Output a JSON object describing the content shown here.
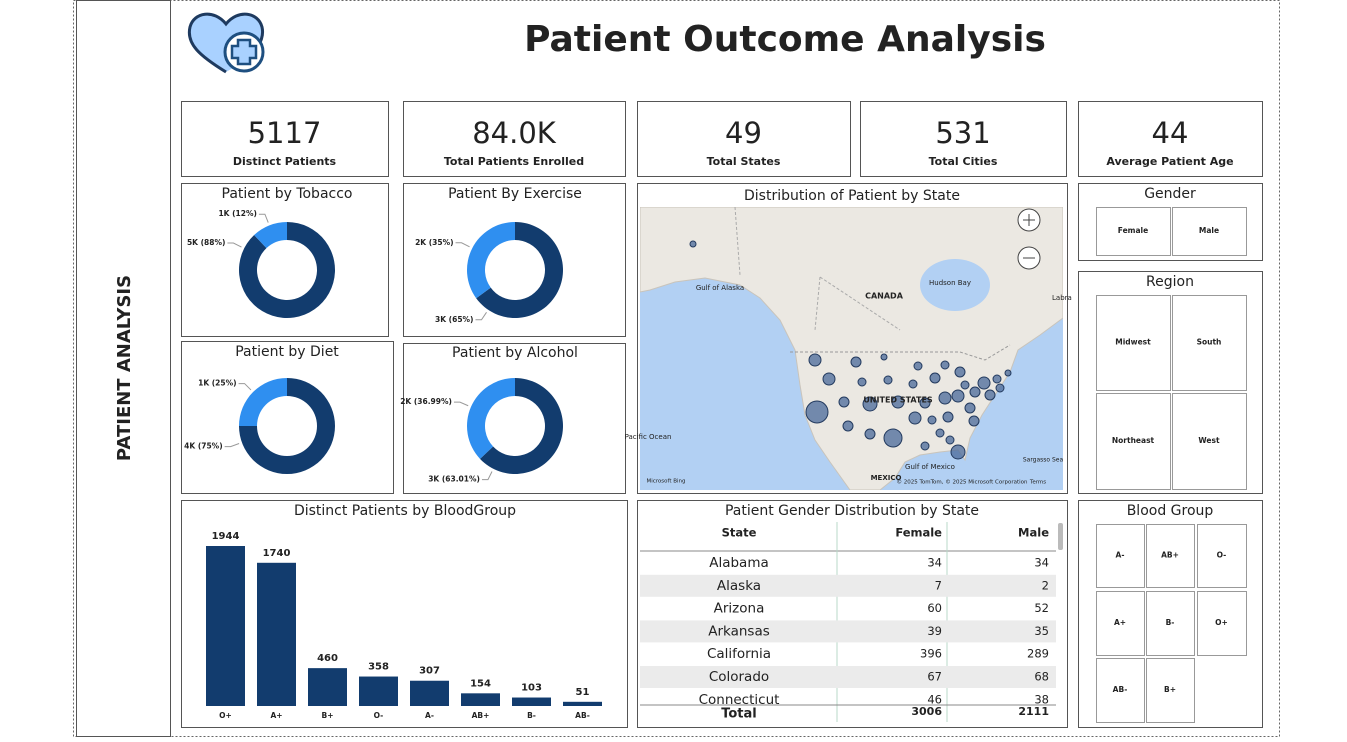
{
  "sidebar": {
    "label": "PATIENT ANALYSIS"
  },
  "header": {
    "title": "Patient Outcome Analysis"
  },
  "kpis": [
    {
      "value": 5117,
      "label": "Distinct Patients"
    },
    {
      "value": "84.0K",
      "label": "Total Patients Enrolled"
    },
    {
      "value": 49,
      "label": "Total States"
    },
    {
      "value": 531,
      "label": "Total Cities"
    },
    {
      "value": 44,
      "label": "Average Patient Age"
    }
  ],
  "chart_data": [
    {
      "type": "pie",
      "donut": true,
      "title": "Patient by Tobacco",
      "values": [
        88,
        12
      ],
      "value_labels": [
        "5K (88%)",
        "1K (12%)"
      ],
      "colors": [
        "#123c6e",
        "#2f8ff0"
      ]
    },
    {
      "type": "pie",
      "donut": true,
      "title": "Patient By Exercise",
      "values": [
        65,
        35
      ],
      "value_labels": [
        "3K (65%)",
        "2K (35%)"
      ],
      "colors": [
        "#123c6e",
        "#2f8ff0"
      ]
    },
    {
      "type": "pie",
      "donut": true,
      "title": "Patient by Diet",
      "values": [
        75,
        25
      ],
      "value_labels": [
        "4K (75%)",
        "1K (25%)"
      ],
      "colors": [
        "#123c6e",
        "#2f8ff0"
      ]
    },
    {
      "type": "pie",
      "donut": true,
      "title": "Patient by Alcohol",
      "values": [
        63.01,
        36.99
      ],
      "value_labels": [
        "3K (63.01%)",
        "2K (36.99%)"
      ],
      "colors": [
        "#123c6e",
        "#2f8ff0"
      ]
    },
    {
      "type": "bar",
      "title": "Distinct Patients by BloodGroup",
      "categories": [
        "O+",
        "A+",
        "B+",
        "O-",
        "A-",
        "AB+",
        "B-",
        "AB-"
      ],
      "values": [
        1944,
        1740,
        460,
        358,
        307,
        154,
        103,
        51
      ],
      "color": "#123c6e",
      "data_labels": true
    }
  ],
  "map": {
    "title": "Distribution of Patient by State",
    "labels": [
      "CANADA",
      "UNITED STATES",
      "MEXICO",
      "Gulf of Alaska",
      "Hudson Bay",
      "Gulf of Mexico",
      "Sargasso Sea",
      "Pacific Ocean",
      "Labra",
      "© 2025 TomTom, © 2025 Microsoft Corporation",
      "Terms",
      "Microsoft Bing"
    ]
  },
  "table": {
    "title": "Patient Gender Distribution by State",
    "columns": [
      "State",
      "Female",
      "Male"
    ],
    "rows": [
      [
        "Alabama",
        34,
        34
      ],
      [
        "Alaska",
        7,
        2
      ],
      [
        "Arizona",
        60,
        52
      ],
      [
        "Arkansas",
        39,
        35
      ],
      [
        "California",
        396,
        289
      ],
      [
        "Colorado",
        67,
        68
      ],
      [
        "Connecticut",
        46,
        38
      ]
    ],
    "total": [
      "Total",
      3006,
      2111
    ]
  },
  "slicers": [
    {
      "title": "Gender",
      "items": [
        "Female",
        "Male"
      ]
    },
    {
      "title": "Region",
      "items": [
        "Midwest",
        "South",
        "Northeast",
        "West"
      ]
    },
    {
      "title": "Blood Group",
      "items": [
        "A-",
        "AB+",
        "O-",
        "A+",
        "B-",
        "O+",
        "AB-",
        "B+"
      ]
    }
  ]
}
